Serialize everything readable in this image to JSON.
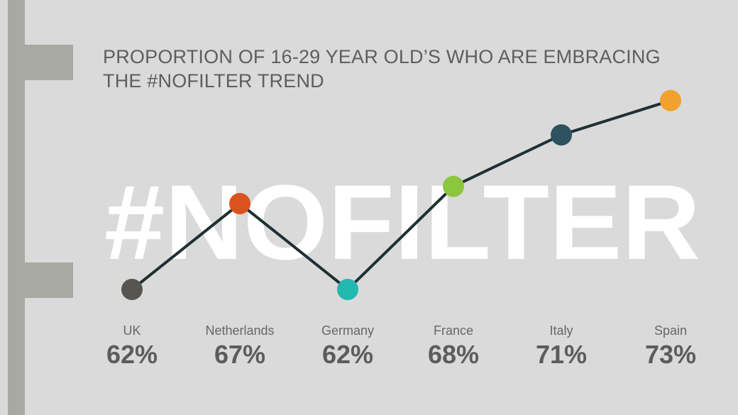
{
  "title_lines": [
    "PROPORTION OF 16-29 YEAR OLD’S WHO ARE EMBRACING",
    "THE #NOFILTER TREND"
  ],
  "chart_data": {
    "type": "line",
    "title": "PROPORTION OF 16-29 YEAR OLD’S WHO ARE EMBRACING THE #NOFILTER TREND",
    "watermark": "#NOFILTER",
    "categories": [
      "UK",
      "Netherlands",
      "Germany",
      "France",
      "Italy",
      "Spain"
    ],
    "values": [
      62,
      67,
      62,
      68,
      71,
      73
    ],
    "value_labels": [
      "62%",
      "67%",
      "62%",
      "68%",
      "71%",
      "73%"
    ],
    "point_colors": [
      "#575551",
      "#d9531e",
      "#22b8b0",
      "#8cc63f",
      "#2e525f",
      "#f1a22c"
    ],
    "line_color": "#1e3034",
    "ylim": [
      60,
      75
    ],
    "xlabel": "",
    "ylabel": "",
    "grid": false,
    "legend": false
  }
}
